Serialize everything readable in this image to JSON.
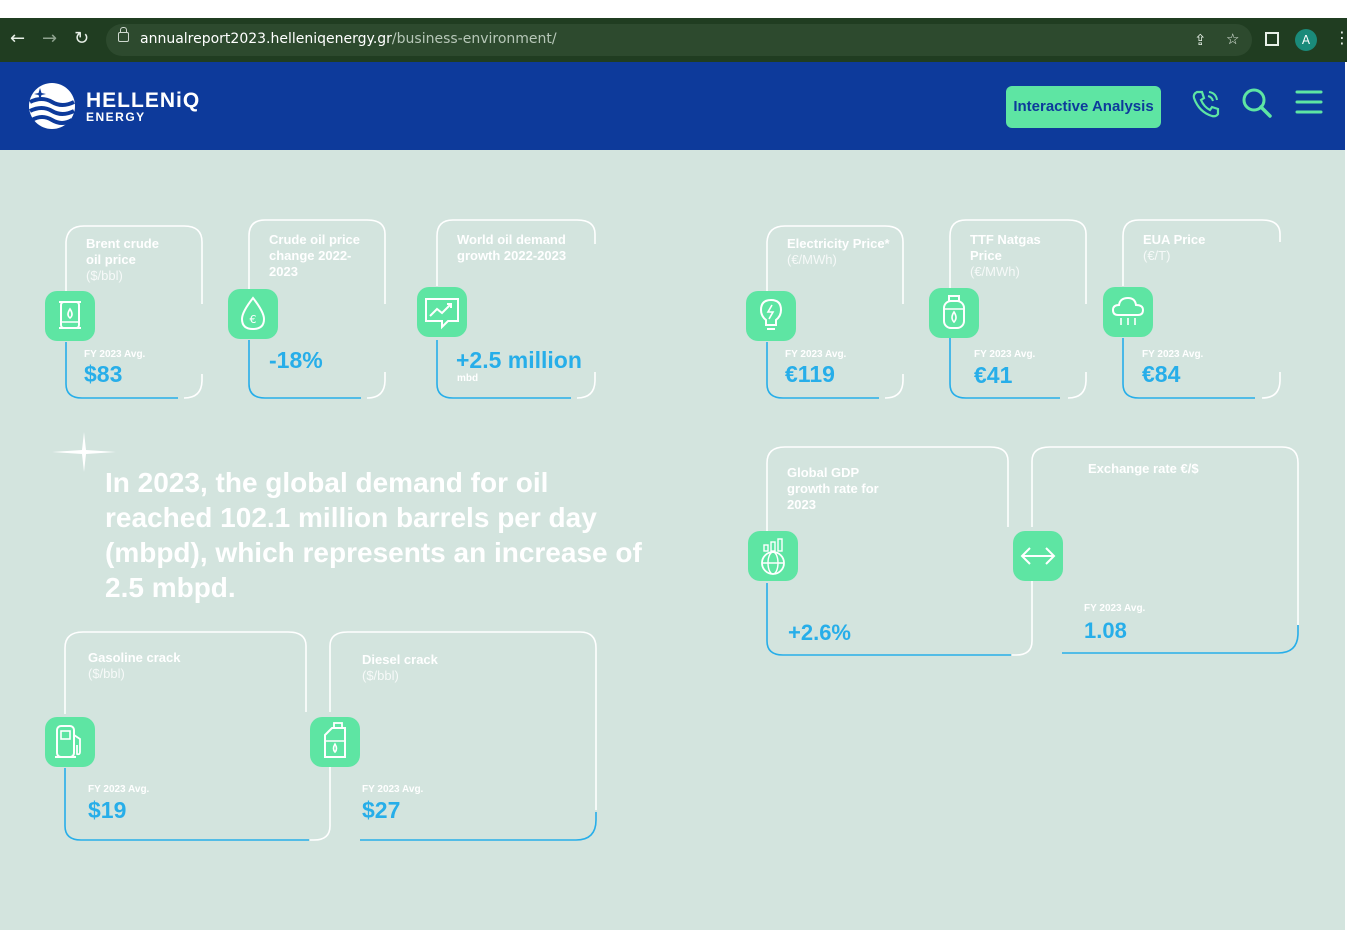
{
  "browser": {
    "url_domain": "annualreport2023.helleniqenergy.gr",
    "url_path": "/business-environment/",
    "avatar_initial": "A"
  },
  "header": {
    "logo_name": "HELLENiQ",
    "logo_sub": "ENERGY",
    "interactive_button": "Interactive Analysis"
  },
  "headline": "In 2023, the global demand for oil reached 102.1 million barrels per day (mbpd), which represents an increase of 2.5 mbpd.",
  "cards": {
    "brent": {
      "label": "Brent crude oil price",
      "unit": "($/bbl)",
      "fy": "FY 2023 Avg.",
      "value": "$83"
    },
    "crude_change": {
      "label": "Crude oil price change 2022-2023",
      "value": "-18%"
    },
    "world_demand": {
      "label": "World oil demand growth 2022-2023",
      "value": "+2.5 million",
      "sub": "mbd"
    },
    "electricity": {
      "label": "Electricity Price*",
      "unit": "(€/MWh)",
      "fy": "FY 2023 Avg.",
      "value": "€119"
    },
    "ttf": {
      "label": "TTF Natgas Price",
      "unit": "(€/MWh)",
      "fy": "FY 2023 Avg.",
      "value": "€41"
    },
    "eua": {
      "label": "EUA Price",
      "unit": "(€/T)",
      "fy": "FY 2023 Avg.",
      "value": "€84"
    },
    "gdp": {
      "label": "Global GDP growth rate for 2023",
      "value": "+2.6%"
    },
    "fx": {
      "label": "Exchange rate €/$",
      "fy": "FY 2023 Avg.",
      "value": "1.08"
    },
    "gasoline": {
      "label": "Gasoline crack",
      "unit": "($/bbl)",
      "fy": "FY 2023 Avg.",
      "value": "$19"
    },
    "diesel": {
      "label": "Diesel crack",
      "unit": "($/bbl)",
      "fy": "FY 2023 Avg.",
      "value": "$27"
    }
  },
  "colors": {
    "navy": "#0d3a9b",
    "mint": "#5ee5a3",
    "value_blue": "#27aee9",
    "background": "#d3e4de"
  }
}
